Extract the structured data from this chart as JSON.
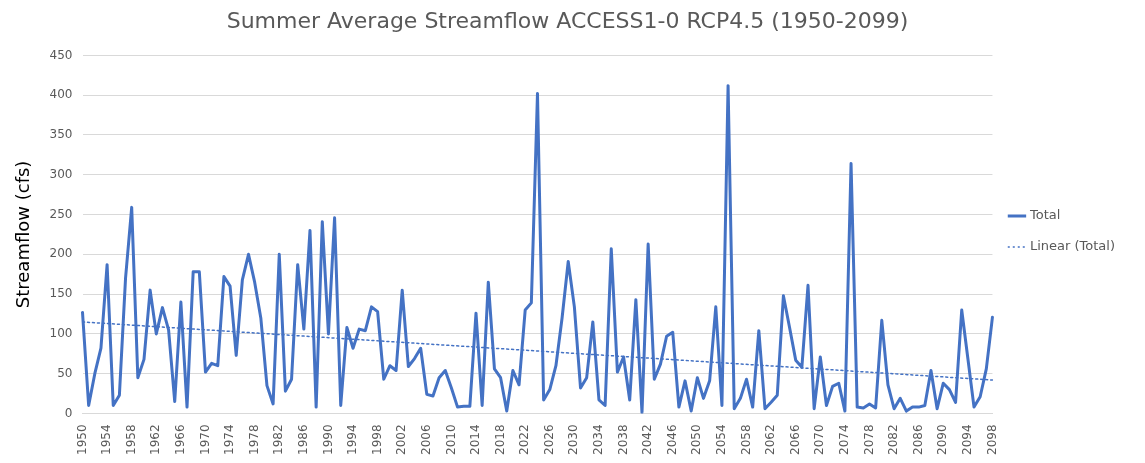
{
  "chart_data": {
    "type": "line",
    "title": "Summer Average Streamflow ACCESS1-0 RCP4.5 (1950-2099)",
    "ylabel": "Streamflow (cfs)",
    "categories": [
      "1950",
      null,
      null,
      null,
      "1954",
      null,
      null,
      null,
      "1958",
      null,
      null,
      null,
      "1962",
      null,
      null,
      null,
      "1966",
      null,
      null,
      null,
      "1970",
      null,
      null,
      null,
      "1974",
      null,
      null,
      null,
      "1978",
      null,
      null,
      null,
      "1982",
      null,
      null,
      null,
      "1986",
      null,
      null,
      null,
      "1990",
      null,
      null,
      null,
      "1994",
      null,
      null,
      null,
      "1998",
      null,
      null,
      null,
      "2002",
      null,
      null,
      null,
      "2006",
      null,
      null,
      null,
      "2010",
      null,
      null,
      null,
      "2014",
      null,
      null,
      null,
      "2018",
      null,
      null,
      null,
      "2022",
      null,
      null,
      null,
      "2026",
      null,
      null,
      null,
      "2030",
      null,
      null,
      null,
      "2034",
      null,
      null,
      null,
      "2038",
      null,
      null,
      null,
      "2042",
      null,
      null,
      null,
      "2046",
      null,
      null,
      null,
      "2050",
      null,
      null,
      null,
      "2054",
      null,
      null,
      null,
      "2058",
      null,
      null,
      null,
      "2062",
      null,
      null,
      null,
      "2066",
      null,
      null,
      null,
      "2070",
      null,
      null,
      null,
      "2074",
      null,
      null,
      null,
      "2078",
      null,
      null,
      null,
      "2082",
      null,
      null,
      null,
      "2086",
      null,
      null,
      null,
      "2090",
      null,
      null,
      null,
      "2094",
      null,
      null,
      null,
      "2098"
    ],
    "series": [
      {
        "name": "Total",
        "color": "#4472c4",
        "line_style": "solid",
        "values": [
          127,
          10,
          50,
          82,
          187,
          10,
          23,
          170,
          259,
          45,
          68,
          155,
          100,
          133,
          105,
          15,
          140,
          8,
          178,
          178,
          52,
          63,
          60,
          172,
          160,
          73,
          168,
          200,
          165,
          120,
          35,
          12,
          200,
          28,
          43,
          187,
          106,
          230,
          8,
          241,
          100,
          246,
          10,
          108,
          82,
          106,
          104,
          134,
          128,
          43,
          60,
          54,
          155,
          59,
          69,
          82,
          24,
          22,
          45,
          54,
          32,
          8,
          9,
          9,
          126,
          10,
          165,
          56,
          45,
          3,
          54,
          36,
          130,
          139,
          402,
          17,
          30,
          60,
          120,
          191,
          134,
          32,
          45,
          115,
          17,
          10,
          207,
          52,
          71,
          17,
          143,
          1,
          213,
          43,
          62,
          97,
          102,
          8,
          41,
          3,
          45,
          19,
          41,
          134,
          10,
          412,
          6,
          19,
          43,
          8,
          104,
          6,
          14,
          23,
          148,
          108,
          67,
          58,
          161,
          6,
          71,
          10,
          34,
          38,
          3,
          314,
          8,
          7,
          12,
          7,
          117,
          36,
          6,
          19,
          3,
          8,
          8,
          10,
          54,
          6,
          38,
          30,
          14,
          130,
          69,
          8,
          21,
          56,
          121
        ]
      },
      {
        "name": "Linear (Total)",
        "type": "line",
        "color": "#4472c4",
        "line_style": "dotted",
        "values": [
          115,
          null,
          null,
          null,
          null,
          null,
          null,
          null,
          null,
          null,
          null,
          null,
          null,
          null,
          null,
          null,
          null,
          null,
          null,
          null,
          null,
          null,
          null,
          null,
          null,
          null,
          null,
          null,
          null,
          null,
          null,
          null,
          null,
          null,
          null,
          null,
          null,
          null,
          null,
          null,
          null,
          null,
          null,
          null,
          null,
          null,
          null,
          null,
          null,
          null,
          null,
          null,
          null,
          null,
          null,
          null,
          null,
          null,
          null,
          null,
          null,
          null,
          null,
          null,
          null,
          null,
          null,
          null,
          null,
          null,
          null,
          null,
          null,
          null,
          null,
          null,
          null,
          null,
          null,
          null,
          null,
          null,
          null,
          null,
          null,
          null,
          null,
          null,
          null,
          null,
          null,
          null,
          null,
          null,
          null,
          null,
          null,
          null,
          null,
          null,
          null,
          null,
          null,
          null,
          null,
          null,
          null,
          null,
          null,
          null,
          null,
          null,
          null,
          null,
          null,
          null,
          null,
          null,
          null,
          null,
          null,
          null,
          null,
          null,
          null,
          null,
          null,
          null,
          null,
          null,
          null,
          null,
          null,
          null,
          null,
          null,
          null,
          null,
          null,
          null,
          null,
          null,
          null,
          null,
          null,
          null,
          null,
          null,
          42
        ]
      }
    ],
    "ylim": [
      0,
      450
    ],
    "yticks": [
      0,
      50,
      100,
      150,
      200,
      250,
      300,
      350,
      400,
      450
    ],
    "grid": "y",
    "legend": "right",
    "marker": "none"
  }
}
